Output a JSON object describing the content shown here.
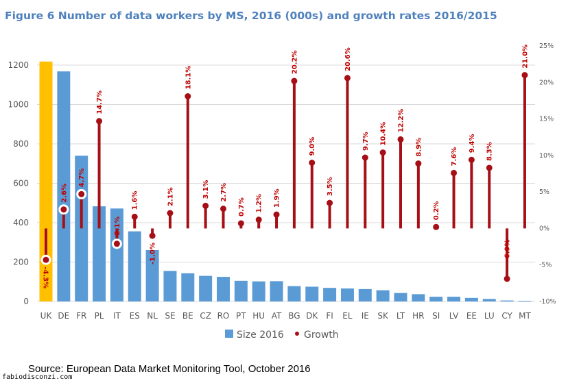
{
  "title": "Figure 6 Number of data workers by MS, 2016 (000s) and growth rates 2016/2015",
  "source": "Source: European Data Market Monitoring Tool, October 2016",
  "watermark": "fabiodisconzi.com",
  "colors": {
    "title": "#4f81bd",
    "bar": "#5b9bd5",
    "highlight_bar": "#ffc000",
    "growth": "#a50f15",
    "growth_label": "#c00000",
    "grid": "#d9d9d9",
    "axis_text": "#595959"
  },
  "chart_data": {
    "type": "bar",
    "title": "Figure 6 Number of data workers by MS, 2016 (000s) and growth rates 2016/2015",
    "xlabel": "",
    "ylabel": "",
    "categories": [
      "UK",
      "DE",
      "FR",
      "PL",
      "IT",
      "ES",
      "NL",
      "SE",
      "BE",
      "CZ",
      "RO",
      "PT",
      "HU",
      "AT",
      "BG",
      "DK",
      "FI",
      "EL",
      "IE",
      "SK",
      "LT",
      "HR",
      "SI",
      "LV",
      "EE",
      "LU",
      "CY",
      "MT"
    ],
    "highlighted_category": "UK",
    "ylim": [
      0,
      1200
    ],
    "yticks": [
      0,
      200,
      400,
      600,
      800,
      1000,
      1200
    ],
    "y2lim": [
      -10,
      25
    ],
    "y2ticks": [
      "-10%",
      "-5%",
      "0%",
      "5%",
      "10%",
      "15%",
      "20%",
      "25%"
    ],
    "y2tick_values": [
      -10,
      -5,
      0,
      5,
      10,
      15,
      20,
      25
    ],
    "grid": true,
    "legend_position": "bottom",
    "series": [
      {
        "name": "Size 2016",
        "type": "bar",
        "axis": "left",
        "values": [
          1218,
          1168,
          740,
          483,
          472,
          356,
          261,
          155,
          143,
          130,
          125,
          105,
          102,
          103,
          78,
          75,
          69,
          66,
          63,
          57,
          43,
          37,
          24,
          24,
          18,
          13,
          5,
          3
        ]
      },
      {
        "name": "Growth",
        "type": "lollipop",
        "axis": "right",
        "values": [
          -4.3,
          2.6,
          4.7,
          14.7,
          -2.1,
          1.6,
          -1.0,
          2.1,
          18.1,
          3.1,
          2.7,
          0.7,
          1.2,
          1.9,
          20.2,
          9.0,
          3.5,
          20.6,
          9.7,
          10.4,
          12.2,
          8.9,
          0.2,
          7.6,
          9.4,
          8.3,
          -6.9,
          21.0
        ],
        "labels": [
          "-4.3%",
          "2.6%",
          "4.7%",
          "14.7%",
          "-2.1%",
          "1.6%",
          "-1.0%",
          "2.1%",
          "18.1%",
          "3.1%",
          "2.7%",
          "0.7%",
          "1.2%",
          "1.9%",
          "20.2%",
          "9.0%",
          "3.5%",
          "20.6%",
          "9.7%",
          "10.4%",
          "12.2%",
          "8.9%",
          "0.2%",
          "7.6%",
          "9.4%",
          "8.3%",
          "-6.9%",
          "21.0%"
        ]
      }
    ],
    "legend": [
      "Size 2016",
      "Growth"
    ]
  }
}
